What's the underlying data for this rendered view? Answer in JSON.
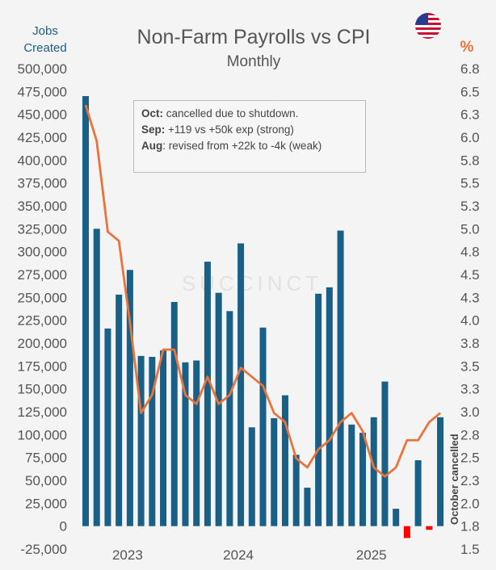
{
  "chart_data": {
    "type": "bar+line",
    "title": "Non-Farm Payrolls vs CPI",
    "subtitle": "Monthly",
    "ylabel_left": "Jobs Created",
    "ylabel_right": "%",
    "ylim_left": [
      -25000,
      500000
    ],
    "ylim_right": [
      1.5,
      6.8
    ],
    "left_ticks": [
      "500,000",
      "475,000",
      "450,000",
      "425,000",
      "400,000",
      "375,000",
      "350,000",
      "325,000",
      "300,000",
      "275,000",
      "250,000",
      "225,000",
      "200,000",
      "175,000",
      "150,000",
      "125,000",
      "100,000",
      "75,000",
      "50,000",
      "25,000",
      "0",
      "-25,000"
    ],
    "right_ticks": [
      "6.8",
      "6.5",
      "6.3",
      "6.0",
      "5.8",
      "5.5",
      "5.3",
      "5.0",
      "4.8",
      "4.5",
      "4.3",
      "4.0",
      "3.8",
      "3.5",
      "3.3",
      "3.0",
      "2.8",
      "2.5",
      "2.3",
      "2.0",
      "1.8",
      "1.5"
    ],
    "year_labels": [
      {
        "label": "2023",
        "month_index": 4
      },
      {
        "label": "2024",
        "month_index": 14
      },
      {
        "label": "2025",
        "month_index": 26
      }
    ],
    "series": [
      {
        "name": "Jobs Created",
        "type": "bar",
        "color": "#1a5f86",
        "negative_color": "#ff0000",
        "values": [
          470000,
          325000,
          216000,
          253000,
          280000,
          186000,
          185000,
          192000,
          245000,
          179000,
          181000,
          289000,
          255000,
          235000,
          309000,
          108000,
          217000,
          118000,
          143000,
          78000,
          42000,
          254000,
          261000,
          323000,
          111000,
          102000,
          119000,
          158000,
          19000,
          -13000,
          72000,
          -4000,
          119000
        ]
      },
      {
        "name": "CPI",
        "type": "line",
        "color": "#e8743b",
        "values": [
          6.4,
          6.0,
          5.0,
          4.9,
          4.0,
          3.0,
          3.2,
          3.7,
          3.7,
          3.2,
          3.1,
          3.4,
          3.1,
          3.2,
          3.5,
          3.4,
          3.3,
          3.0,
          2.9,
          2.5,
          2.4,
          2.6,
          2.7,
          2.9,
          3.0,
          2.8,
          2.4,
          2.3,
          2.4,
          2.7,
          2.7,
          2.9,
          3.0
        ]
      }
    ],
    "annotations": {
      "vertical_label": "October cancelled",
      "note_lines": [
        {
          "bold": "Oct:",
          "text": " cancelled due to shutdown."
        },
        {
          "bold": "Sep:",
          "text": " +119 vs +50k exp (strong)"
        },
        {
          "bold": "Aug",
          "text": ": revised from +22k to -4k (weak)"
        }
      ]
    },
    "watermark": "SUCCINCT"
  }
}
